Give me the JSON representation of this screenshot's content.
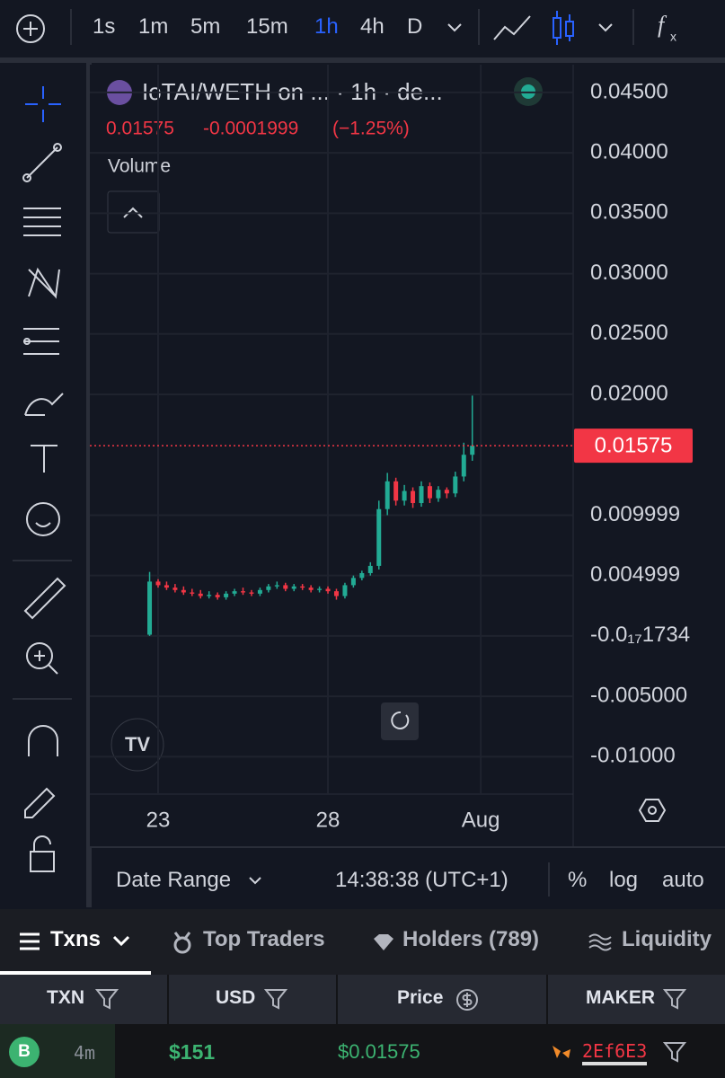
{
  "toolbar": {
    "intervals": [
      "1s",
      "1m",
      "5m",
      "15m",
      "1h",
      "4h",
      "D"
    ],
    "active": "1h"
  },
  "chart_data": {
    "type": "candlestick",
    "title": "IoTAI/WETH on ...  · 1h · de...",
    "last_price": 0.01575,
    "price_change": "-0.0001999",
    "pct_change": "(−1.25%)",
    "indicator": "Volume",
    "up_color": "#22ab94",
    "down_color": "#f23645",
    "x": [
      -0.25,
      0,
      0.25,
      0.5,
      0.75,
      1,
      1.25,
      1.5,
      1.75,
      2,
      2.25,
      2.5,
      2.75,
      3,
      3.25,
      3.5,
      3.75,
      4,
      4.25,
      4.5,
      4.75,
      5,
      5.25,
      5.5,
      5.75,
      6,
      6.25,
      6.5,
      6.75,
      7,
      7.25,
      7.5,
      7.75,
      8,
      8.25,
      8.5,
      8.75,
      9,
      9.25
    ],
    "open": [
      0.0001,
      0.0045,
      0.0042,
      0.004,
      0.0038,
      0.0036,
      0.0035,
      0.0033,
      0.0034,
      0.0032,
      0.0035,
      0.0037,
      0.0036,
      0.0035,
      0.0038,
      0.0041,
      0.0042,
      0.0039,
      0.0041,
      0.004,
      0.0038,
      0.0039,
      0.0037,
      0.0033,
      0.0042,
      0.0048,
      0.0052,
      0.0058,
      0.0105,
      0.0128,
      0.0112,
      0.012,
      0.011,
      0.0124,
      0.0114,
      0.0121,
      0.0118,
      0.0132,
      0.015
    ],
    "high": [
      0.0053,
      0.0047,
      0.0045,
      0.0043,
      0.0041,
      0.0039,
      0.0038,
      0.0037,
      0.0036,
      0.0037,
      0.0039,
      0.004,
      0.0038,
      0.004,
      0.0043,
      0.0045,
      0.0044,
      0.0043,
      0.0043,
      0.0042,
      0.0041,
      0.0041,
      0.0039,
      0.0044,
      0.005,
      0.0054,
      0.0061,
      0.0112,
      0.0135,
      0.0131,
      0.0125,
      0.0123,
      0.0128,
      0.0127,
      0.0124,
      0.0123,
      0.0136,
      0.016,
      0.0199
    ],
    "low": [
      0,
      0.004,
      0.0038,
      0.0036,
      0.0034,
      0.0033,
      0.0031,
      0.0031,
      0.003,
      0.003,
      0.0033,
      0.0034,
      0.0033,
      0.0033,
      0.0036,
      0.0039,
      0.0037,
      0.0037,
      0.0038,
      0.0036,
      0.0036,
      0.0035,
      0.003,
      0.0031,
      0.004,
      0.0046,
      0.005,
      0.0055,
      0.01,
      0.0108,
      0.0108,
      0.0106,
      0.0107,
      0.011,
      0.0111,
      0.0114,
      0.0115,
      0.0128,
      0.0145
    ],
    "close": [
      0.0045,
      0.0042,
      0.004,
      0.0038,
      0.0036,
      0.0035,
      0.0033,
      0.0034,
      0.0032,
      0.0035,
      0.0037,
      0.0036,
      0.0035,
      0.0038,
      0.0041,
      0.0042,
      0.0039,
      0.0041,
      0.004,
      0.0038,
      0.0039,
      0.0037,
      0.0033,
      0.0042,
      0.0048,
      0.0052,
      0.0058,
      0.0105,
      0.0128,
      0.0112,
      0.012,
      0.011,
      0.0124,
      0.0114,
      0.0121,
      0.0118,
      0.0132,
      0.015,
      0.01575
    ],
    "xlim": [
      -2.01,
      12.22
    ],
    "ylim": [
      -0.0131,
      0.0473
    ],
    "xticks": [
      {
        "value": 0,
        "label": "23"
      },
      {
        "value": 5,
        "label": "28"
      },
      {
        "value": 9.5,
        "label": "Aug"
      }
    ],
    "yticks": [
      {
        "value": 0.045,
        "label": "0.04500"
      },
      {
        "value": 0.04,
        "label": "0.04000"
      },
      {
        "value": 0.035,
        "label": "0.03500"
      },
      {
        "value": 0.03,
        "label": "0.03000"
      },
      {
        "value": 0.025,
        "label": "0.02500"
      },
      {
        "value": 0.02,
        "label": "0.02000"
      },
      0.009999,
      0.004999,
      {
        "value": -1.734e-18,
        "label": "-0.0₁₇1734"
      },
      {
        "value": -0.005,
        "label": "-0.005000"
      },
      {
        "value": -0.01,
        "label": "-0.01000"
      }
    ],
    "grid": true
  },
  "bottom_bar": {
    "date_range": "Date Range",
    "time": "14:38:38 (UTC+1)",
    "percent": "%",
    "log": "log",
    "auto": "auto"
  },
  "tabs": [
    "Txns",
    "Top Traders",
    "Holders (789)",
    "Liquidity"
  ],
  "table": {
    "headers": [
      "TXN",
      "USD",
      "Price",
      "MAKER"
    ],
    "rows": [
      [
        "B",
        "4m",
        "$151",
        "$0.01575",
        "2Ef6E3"
      ]
    ]
  }
}
